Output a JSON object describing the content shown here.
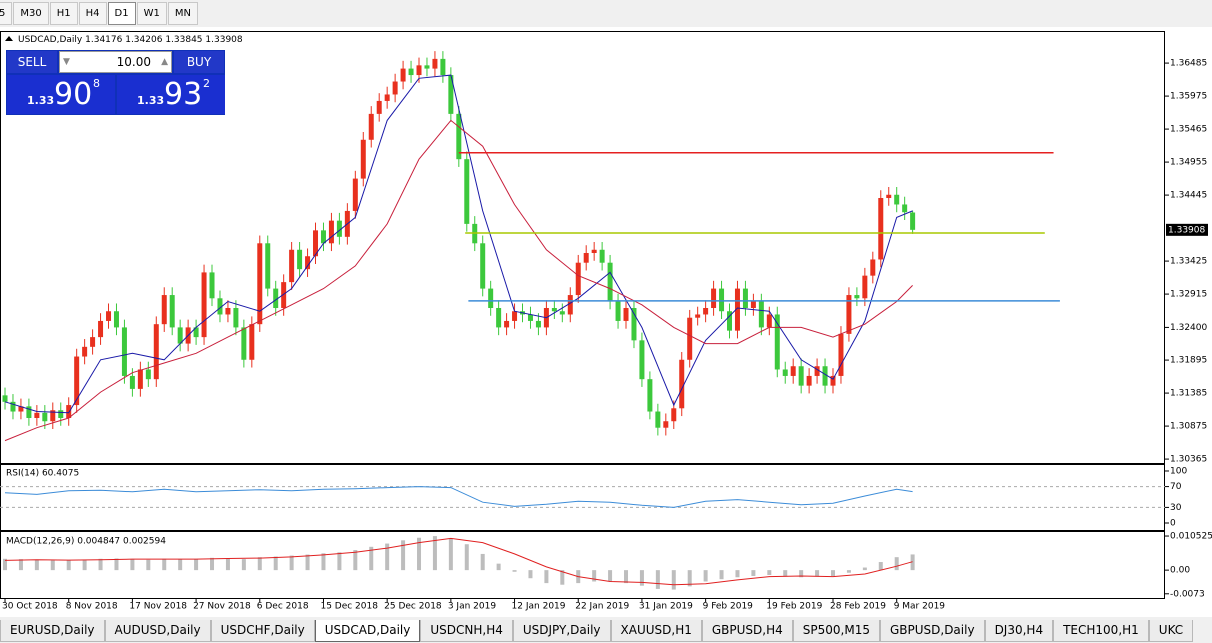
{
  "toolbar": {
    "timeframes": [
      "5",
      "M30",
      "H1",
      "H4",
      "D1",
      "W1",
      "MN"
    ]
  },
  "trade_panel": {
    "sell": "SELL",
    "buy": "BUY",
    "volume": "10.00",
    "bid": {
      "big": "1.33",
      "main": "90",
      "small": "8"
    },
    "ask": {
      "big": "1.33",
      "main": "93",
      "small": "2"
    }
  },
  "chart_data": [
    {
      "type": "candlestick",
      "title": "USDCAD,Daily",
      "bull_color": "#e8301e",
      "bear_color": "#3cc83c",
      "xlim": [
        -0.63,
        145.7
      ],
      "xticks": [
        {
          "value": 0,
          "label": "30 Oct 2018"
        },
        {
          "value": 8,
          "label": "8 Nov 2018"
        },
        {
          "value": 16,
          "label": "17 Nov 2018"
        },
        {
          "value": 24,
          "label": "27 Nov 2018"
        },
        {
          "value": 32,
          "label": "6 Dec 2018"
        },
        {
          "value": 40,
          "label": "15 Dec 2018"
        },
        {
          "value": 48,
          "label": "25 Dec 2018"
        },
        {
          "value": 56,
          "label": "3 Jan 2019"
        },
        {
          "value": 64,
          "label": "12 Jan 2019"
        },
        {
          "value": 72,
          "label": "22 Jan 2019"
        },
        {
          "value": 80,
          "label": "31 Jan 2019"
        },
        {
          "value": 88,
          "label": "9 Feb 2019"
        },
        {
          "value": 96,
          "label": "19 Feb 2019"
        },
        {
          "value": 104,
          "label": "28 Feb 2019"
        },
        {
          "value": 112,
          "label": "9 Mar 2019"
        }
      ],
      "ylim": [
        1.3032,
        1.3695
      ],
      "yticks": [
        1.36485,
        1.35975,
        1.35465,
        1.34955,
        1.34445,
        1.33425,
        1.32915,
        {
          "value": 1.324,
          "label": "1.32400"
        },
        1.31895,
        1.31385,
        1.30875,
        1.30365
      ],
      "open": [
        1.3135,
        1.3125,
        1.311,
        1.3118,
        1.31,
        1.3108,
        1.3095,
        1.3112,
        1.31,
        1.312,
        1.3195,
        1.321,
        1.3225,
        1.325,
        1.3265,
        1.324,
        1.3165,
        1.3145,
        1.3175,
        1.316,
        1.3245,
        1.329,
        1.324,
        1.3215,
        1.324,
        1.3225,
        1.3325,
        1.3285,
        1.326,
        1.327,
        1.324,
        1.319,
        1.3245,
        1.337,
        1.33,
        1.327,
        1.331,
        1.336,
        1.333,
        1.335,
        1.339,
        1.337,
        1.3405,
        1.338,
        1.342,
        1.347,
        1.353,
        1.357,
        1.359,
        1.36,
        1.362,
        1.364,
        1.363,
        1.3645,
        1.364,
        1.3655,
        1.363,
        1.357,
        1.35,
        1.34,
        1.337,
        1.33,
        1.327,
        1.324,
        1.325,
        1.3265,
        1.326,
        1.325,
        1.324,
        1.327,
        1.3265,
        1.326,
        1.329,
        1.334,
        1.3355,
        1.336,
        1.334,
        1.328,
        1.325,
        1.327,
        1.322,
        1.316,
        1.311,
        1.3085,
        1.3095,
        1.3115,
        1.319,
        1.3255,
        1.326,
        1.327,
        1.33,
        1.3265,
        1.3235,
        1.33,
        1.327,
        1.328,
        1.324,
        1.326,
        1.3175,
        1.3165,
        1.318,
        1.315,
        1.3165,
        1.318,
        1.315,
        1.3165,
        1.323,
        1.329,
        1.3285,
        1.332,
        1.3345,
        1.344,
        1.3445,
        1.343,
        1.34176
      ],
      "high": [
        1.3147,
        1.3137,
        1.313,
        1.313,
        1.312,
        1.312,
        1.3124,
        1.3124,
        1.3132,
        1.3207,
        1.3222,
        1.3237,
        1.3262,
        1.3277,
        1.3277,
        1.3252,
        1.3177,
        1.3187,
        1.3187,
        1.3257,
        1.3302,
        1.3302,
        1.3252,
        1.3252,
        1.3252,
        1.3337,
        1.3337,
        1.3297,
        1.3282,
        1.3282,
        1.3252,
        1.3257,
        1.3382,
        1.3382,
        1.3312,
        1.3322,
        1.3372,
        1.3372,
        1.3362,
        1.3402,
        1.3402,
        1.3417,
        1.3417,
        1.3432,
        1.3482,
        1.3542,
        1.3582,
        1.3602,
        1.3612,
        1.3632,
        1.3652,
        1.3652,
        1.3657,
        1.3657,
        1.3667,
        1.3667,
        1.3642,
        1.3582,
        1.3512,
        1.3412,
        1.3382,
        1.3312,
        1.3282,
        1.3262,
        1.3277,
        1.3277,
        1.3272,
        1.3262,
        1.3282,
        1.3282,
        1.3277,
        1.3302,
        1.3352,
        1.3367,
        1.3372,
        1.3372,
        1.3352,
        1.3292,
        1.3282,
        1.3282,
        1.3232,
        1.3172,
        1.3122,
        1.3107,
        1.3127,
        1.3202,
        1.3267,
        1.3272,
        1.3282,
        1.3312,
        1.3312,
        1.3277,
        1.3312,
        1.3312,
        1.3292,
        1.3292,
        1.3272,
        1.3272,
        1.3187,
        1.3192,
        1.3192,
        1.3177,
        1.3192,
        1.3192,
        1.3177,
        1.3242,
        1.3302,
        1.3302,
        1.3332,
        1.3357,
        1.3452,
        1.3457,
        1.3457,
        1.3442,
        1.34206
      ],
      "low": [
        1.3113,
        1.3098,
        1.3098,
        1.3088,
        1.3088,
        1.3083,
        1.3083,
        1.3088,
        1.3088,
        1.3108,
        1.3183,
        1.3198,
        1.3213,
        1.3238,
        1.3228,
        1.3153,
        1.3133,
        1.3133,
        1.3148,
        1.3148,
        1.3233,
        1.3228,
        1.3203,
        1.3203,
        1.3213,
        1.3213,
        1.3273,
        1.3248,
        1.3248,
        1.3228,
        1.3178,
        1.3178,
        1.3233,
        1.3288,
        1.3258,
        1.3258,
        1.3298,
        1.3318,
        1.3318,
        1.3338,
        1.3358,
        1.3358,
        1.3368,
        1.3368,
        1.3408,
        1.3458,
        1.3518,
        1.3558,
        1.3578,
        1.3588,
        1.3608,
        1.3618,
        1.3618,
        1.3628,
        1.3628,
        1.3618,
        1.3558,
        1.3488,
        1.3388,
        1.3358,
        1.3288,
        1.3258,
        1.3228,
        1.3228,
        1.3238,
        1.3248,
        1.3238,
        1.3228,
        1.3228,
        1.3253,
        1.3248,
        1.3248,
        1.3278,
        1.3328,
        1.3343,
        1.3328,
        1.3268,
        1.3238,
        1.3238,
        1.3208,
        1.3148,
        1.3098,
        1.3073,
        1.3073,
        1.3083,
        1.3103,
        1.3178,
        1.3243,
        1.3248,
        1.3258,
        1.3253,
        1.3223,
        1.3223,
        1.3258,
        1.3258,
        1.3228,
        1.3228,
        1.3163,
        1.3153,
        1.3153,
        1.3138,
        1.3138,
        1.3153,
        1.3138,
        1.3138,
        1.3153,
        1.3218,
        1.3273,
        1.3273,
        1.3308,
        1.3333,
        1.3428,
        1.3418,
        1.3406,
        1.33845
      ],
      "close": [
        1.3125,
        1.311,
        1.3118,
        1.31,
        1.3108,
        1.3095,
        1.3112,
        1.31,
        1.312,
        1.3195,
        1.321,
        1.3225,
        1.325,
        1.3265,
        1.324,
        1.3165,
        1.3145,
        1.3175,
        1.316,
        1.3245,
        1.329,
        1.324,
        1.3215,
        1.324,
        1.3225,
        1.3325,
        1.3285,
        1.326,
        1.327,
        1.324,
        1.319,
        1.3245,
        1.337,
        1.33,
        1.327,
        1.331,
        1.336,
        1.333,
        1.335,
        1.339,
        1.337,
        1.3405,
        1.338,
        1.342,
        1.347,
        1.353,
        1.357,
        1.359,
        1.36,
        1.362,
        1.364,
        1.363,
        1.3645,
        1.364,
        1.3655,
        1.363,
        1.357,
        1.35,
        1.34,
        1.337,
        1.33,
        1.327,
        1.324,
        1.325,
        1.3265,
        1.326,
        1.325,
        1.324,
        1.327,
        1.3265,
        1.326,
        1.329,
        1.334,
        1.3355,
        1.336,
        1.334,
        1.328,
        1.325,
        1.327,
        1.322,
        1.316,
        1.311,
        1.3085,
        1.3095,
        1.3115,
        1.319,
        1.3255,
        1.326,
        1.327,
        1.33,
        1.3265,
        1.3235,
        1.33,
        1.327,
        1.328,
        1.324,
        1.326,
        1.3175,
        1.3165,
        1.318,
        1.315,
        1.3165,
        1.318,
        1.315,
        1.3165,
        1.323,
        1.329,
        1.3285,
        1.332,
        1.3345,
        1.344,
        1.3445,
        1.343,
        1.3418,
        1.33908
      ],
      "series": [
        {
          "color": "#1a1aa8",
          "x": [
            0,
            4,
            8,
            12,
            16,
            20,
            24,
            28,
            32,
            36,
            40,
            44,
            48,
            52,
            56,
            60,
            64,
            68,
            72,
            76,
            80,
            84,
            88,
            92,
            96,
            100,
            104,
            108,
            112,
            114
          ],
          "values": [
            1.3125,
            1.311,
            1.3108,
            1.319,
            1.32,
            1.319,
            1.324,
            1.328,
            1.3265,
            1.33,
            1.337,
            1.341,
            1.356,
            1.3625,
            1.363,
            1.342,
            1.3265,
            1.3255,
            1.3285,
            1.3325,
            1.324,
            1.312,
            1.322,
            1.327,
            1.3265,
            1.319,
            1.316,
            1.325,
            1.341,
            1.342
          ]
        },
        {
          "color": "#c8203c",
          "x": [
            0,
            4,
            8,
            12,
            16,
            20,
            24,
            28,
            32,
            36,
            40,
            44,
            48,
            52,
            56,
            60,
            64,
            68,
            72,
            76,
            80,
            84,
            88,
            92,
            96,
            100,
            104,
            108,
            112,
            114
          ],
          "values": [
            1.3065,
            1.3085,
            1.31,
            1.314,
            1.317,
            1.3185,
            1.32,
            1.3225,
            1.325,
            1.3275,
            1.33,
            1.3335,
            1.34,
            1.35,
            1.356,
            1.352,
            1.343,
            1.336,
            1.332,
            1.33,
            1.3275,
            1.324,
            1.3215,
            1.3215,
            1.324,
            1.324,
            1.3225,
            1.3245,
            1.328,
            1.3305
          ]
        }
      ],
      "hlines": [
        {
          "value": 1.351,
          "start": 57,
          "end": 131.7,
          "color": "#e52020"
        },
        {
          "value": 1.3386,
          "start": 57.8,
          "end": 130.6,
          "color": "#a8c800"
        },
        {
          "value": 1.3281,
          "start": 58.2,
          "end": 132.5,
          "color": "#3c8cd8"
        }
      ]
    },
    {
      "type": "line",
      "title": "RSI(14) 60.4075",
      "ylim": [
        -9.6,
        111.5
      ],
      "yticks": [
        100,
        70,
        30,
        0
      ],
      "levels": [
        70,
        30
      ],
      "series": [
        {
          "color": "#3c8cd8",
          "x": [
            0,
            4,
            8,
            12,
            16,
            20,
            24,
            28,
            32,
            36,
            40,
            44,
            48,
            52,
            56,
            60,
            64,
            68,
            72,
            76,
            80,
            84,
            88,
            92,
            96,
            100,
            104,
            108,
            112,
            114
          ],
          "values": [
            58,
            55,
            62,
            63,
            60,
            65,
            60,
            62,
            64,
            62,
            65,
            66,
            68,
            70,
            68,
            40,
            32,
            36,
            42,
            40,
            34,
            30,
            42,
            45,
            40,
            35,
            38,
            52,
            65,
            60.4075
          ]
        }
      ]
    },
    {
      "type": "macd",
      "title": "MACD(12,26,9) 0.004847 0.002594",
      "ylim": [
        -0.0086,
        0.01177
      ],
      "yticks": [
        0.010525,
        {
          "value": 0,
          "label": "0.00"
        },
        -0.0073
      ],
      "histogram": {
        "color": "#bdbdbd",
        "x": [
          0,
          2,
          4,
          6,
          8,
          10,
          12,
          14,
          16,
          18,
          20,
          22,
          24,
          26,
          28,
          30,
          32,
          34,
          36,
          38,
          40,
          42,
          44,
          46,
          48,
          50,
          52,
          54,
          56,
          58,
          60,
          62,
          64,
          66,
          68,
          70,
          72,
          74,
          76,
          78,
          80,
          82,
          84,
          86,
          88,
          90,
          92,
          94,
          96,
          98,
          100,
          102,
          104,
          106,
          108,
          110,
          112,
          114
        ],
        "values": [
          0.0035,
          0.0034,
          0.0032,
          0.003,
          0.003,
          0.0032,
          0.0035,
          0.0036,
          0.0033,
          0.0032,
          0.0035,
          0.0034,
          0.0033,
          0.0038,
          0.0037,
          0.0034,
          0.004,
          0.0042,
          0.0045,
          0.0048,
          0.0052,
          0.0055,
          0.0062,
          0.0072,
          0.0082,
          0.0092,
          0.01,
          0.0105,
          0.0098,
          0.008,
          0.005,
          0.002,
          -0.0005,
          -0.0025,
          -0.004,
          -0.0045,
          -0.004,
          -0.0035,
          -0.0035,
          -0.004,
          -0.0048,
          -0.0058,
          -0.006,
          -0.005,
          -0.0035,
          -0.0028,
          -0.0022,
          -0.0018,
          -0.0015,
          -0.002,
          -0.0022,
          -0.002,
          -0.0018,
          -0.0008,
          0.0008,
          0.0025,
          0.004,
          0.004847
        ]
      },
      "signal": {
        "color": "#e02020",
        "x": [
          0,
          4,
          8,
          12,
          16,
          20,
          24,
          28,
          32,
          36,
          40,
          44,
          48,
          52,
          56,
          60,
          64,
          68,
          72,
          76,
          80,
          84,
          88,
          92,
          96,
          100,
          104,
          108,
          112,
          114
        ],
        "values": [
          0.003,
          0.0032,
          0.0031,
          0.0032,
          0.0034,
          0.0034,
          0.0034,
          0.0036,
          0.0037,
          0.0041,
          0.0047,
          0.0055,
          0.0068,
          0.0085,
          0.0098,
          0.0085,
          0.005,
          0.001,
          -0.002,
          -0.0035,
          -0.0038,
          -0.0045,
          -0.0042,
          -0.003,
          -0.002,
          -0.0018,
          -0.002,
          -0.0012,
          0.0012,
          0.002594
        ]
      }
    }
  ],
  "tabs": [
    "EURUSD,Daily",
    "AUDUSD,Daily",
    "USDCHF,Daily",
    "USDCAD,Daily",
    "USDCNH,H4",
    "USDJPY,Daily",
    "XAUUSD,H1",
    "GBPUSD,H4",
    "SP500,M15",
    "GBPUSD,Daily",
    "DJ30,H4",
    "TECH100,H1",
    "UKC"
  ]
}
